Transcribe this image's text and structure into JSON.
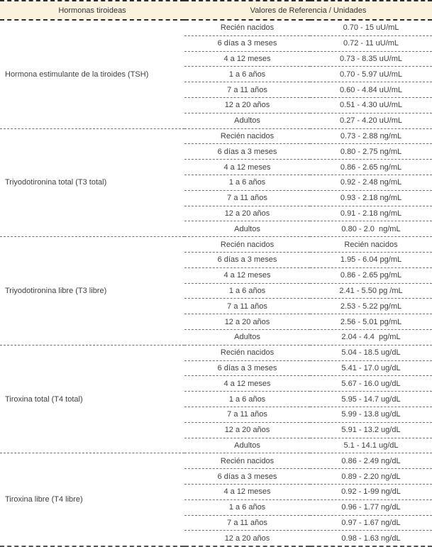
{
  "table": {
    "header": {
      "hormones_label": "Hormonas tiroideas",
      "values_label": "Valores de Referencia / Unidades"
    },
    "sections": [
      {
        "hormone": "Hormona estimulante de la tiroides (TSH)",
        "rows": [
          {
            "age": "Recién nacidos",
            "value": "0.70 - 15 uU/mL"
          },
          {
            "age": "6 días a 3 meses",
            "value": "0.72 - 11 uU/mL"
          },
          {
            "age": "4 a 12 meses",
            "value": "0.73 - 8.35 uU/mL"
          },
          {
            "age": "1 a 6 años",
            "value": "0.70 - 5.97 uU/mL"
          },
          {
            "age": "7 a 11 años",
            "value": "0.60 - 4.84 uU/mL"
          },
          {
            "age": "12 a 20 años",
            "value": "0.51 - 4.30 uU/mL"
          },
          {
            "age": "Adultos",
            "value": "0.27 - 4.20 uU/mL"
          }
        ]
      },
      {
        "hormone": "Triyodotironina total (T3 total)",
        "rows": [
          {
            "age": "Recién nacidos",
            "value": "0.73 - 2.88 ng/mL"
          },
          {
            "age": "6 días a 3 meses",
            "value": "0.80 - 2.75 ng/mL"
          },
          {
            "age": "4 a 12 meses",
            "value": "0.86 - 2.65 ng/mL"
          },
          {
            "age": "1 a 6 años",
            "value": "0.92 - 2.48 ng/mL"
          },
          {
            "age": "7 a 11 años",
            "value": "0.93 - 2.18 ng/mL"
          },
          {
            "age": "12 a 20 años",
            "value": "0.91 - 2.18 ng/mL"
          },
          {
            "age": "Adultos",
            "value": "0.80 - 2.0  ng/mL"
          }
        ]
      },
      {
        "hormone": "Triyodotironina libre (T3 libre)",
        "rows": [
          {
            "age": "Recién nacidos",
            "value": "Recién nacidos"
          },
          {
            "age": "6 días a 3 meses",
            "value": "1.95 - 6.04 pg/mL"
          },
          {
            "age": "4 a 12 meses",
            "value": "0.86 - 2.65 pg/mL"
          },
          {
            "age": "1 a 6 años",
            "value": "2.41 - 5.50 pg /mL"
          },
          {
            "age": "7 a 11 años",
            "value": "2.53 - 5.22 pg/mL"
          },
          {
            "age": "12 a 20 años",
            "value": "2.56 - 5.01 pg/mL"
          },
          {
            "age": "Adultos",
            "value": "2.04 - 4.4  pg/mL"
          }
        ]
      },
      {
        "hormone": "Tiroxina total (T4 total)",
        "rows": [
          {
            "age": "Recién nacidos",
            "value": "5.04 - 18.5 ug/dL"
          },
          {
            "age": "6 días a 3 meses",
            "value": "5.41 - 17.0 ug/dL"
          },
          {
            "age": "4 a 12 meses",
            "value": "5.67 - 16.0 ug/dL"
          },
          {
            "age": "1 a 6 años",
            "value": "5.95 - 14.7 ug/dL"
          },
          {
            "age": "7 a 11 años",
            "value": "5.99 - 13.8 ug/dL"
          },
          {
            "age": "12 a 20 años",
            "value": "5.91 - 13.2 ug/dL"
          },
          {
            "age": "Adultos",
            "value": "5.1 - 14.1 ug/dL"
          }
        ]
      },
      {
        "hormone": "Tiroxina libre (T4 libre)",
        "rows": [
          {
            "age": "Recién nacidos",
            "value": "0.86 - 2.49 ng/dL"
          },
          {
            "age": "6 días a 3 meses",
            "value": "0.89 - 2.20 ng/dL"
          },
          {
            "age": "4 a 12 meses",
            "value": "0.92 - 1-99 ng/dL"
          },
          {
            "age": "1 a 6 años",
            "value": "0.96 - 1.77 ng/dL"
          },
          {
            "age": "7 a 11 años",
            "value": "0.97 - 1.67 ng/dL"
          },
          {
            "age": "12 a 20 años",
            "value": "0.98 - 1.63 ng/dL"
          }
        ]
      }
    ],
    "colors": {
      "header_bg": "#faf2dd",
      "text": "#3f3f3f",
      "border_major": "#2d2d2d",
      "border_minor": "#747474"
    }
  }
}
